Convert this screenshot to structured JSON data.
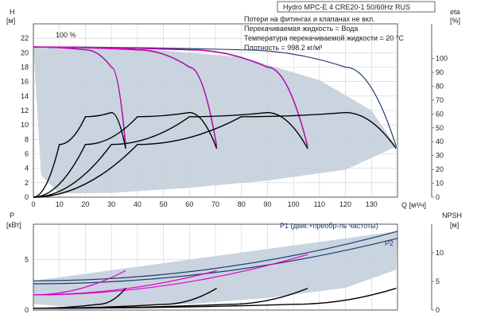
{
  "chart_data": [
    {
      "type": "line",
      "title": "Hydro MPC-E 4 CRE20-1 50/60Hz RUS",
      "xlabel": "Q [м³/ч]",
      "ylabel_left": "H",
      "ylabel_left_unit": "[м]",
      "ylabel_right": "eta",
      "ylabel_right_unit": "[%]",
      "xlim": [
        0,
        140
      ],
      "ylim": [
        0,
        24
      ],
      "ylim_right": [
        0,
        125
      ],
      "x_ticks": [
        0,
        10,
        20,
        30,
        40,
        50,
        60,
        70,
        80,
        90,
        100,
        110,
        120,
        130
      ],
      "y_ticks": [
        0,
        2,
        4,
        6,
        8,
        10,
        12,
        14,
        16,
        18,
        20,
        22
      ],
      "y_ticks_right": [
        0,
        10,
        20,
        30,
        40,
        50,
        60,
        70,
        80,
        90,
        100
      ],
      "grid": true,
      "annotations": [
        "Потери на фитингах и клапанах не вкл.",
        "Перекачиваемая жидкость = Вода",
        "Температура перекачиваемой жидкости = 20 °C",
        "Плотность = 998.2 кг/м³"
      ],
      "speed_label": "100 %",
      "series": [
        {
          "values": [
            [
              0,
              20.8
            ],
            [
              20,
              20.4
            ],
            [
              30,
              18.0
            ],
            [
              35.5,
              7.0
            ]
          ],
          "color": "#000000"
        },
        {
          "values": [
            [
              0,
              20.8
            ],
            [
              40,
              20.4
            ],
            [
              60,
              18.0
            ],
            [
              70.5,
              7.0
            ]
          ],
          "color": "#000000"
        },
        {
          "values": [
            [
              0,
              20.8
            ],
            [
              60,
              20.4
            ],
            [
              90,
              18.0
            ],
            [
              105.5,
              7.0
            ]
          ],
          "color": "#000000"
        },
        {
          "values": [
            [
              0,
              20.8
            ],
            [
              80,
              20.4
            ],
            [
              120,
              18.0
            ],
            [
              139.5,
              7.0
            ]
          ],
          "color": "#1f3d6b"
        },
        {
          "values": [
            [
              0,
              20.8
            ],
            [
              20,
              20.4
            ],
            [
              30,
              18.0
            ],
            [
              35.5,
              7.0
            ]
          ],
          "color": "#e000c8"
        },
        {
          "values": [
            [
              0,
              20.8
            ],
            [
              40,
              20.4
            ],
            [
              60,
              18.0
            ],
            [
              70.5,
              7.0
            ]
          ],
          "color": "#e000c8"
        },
        {
          "values": [
            [
              0,
              20.8
            ],
            [
              60,
              20.4
            ],
            [
              90,
              18.0
            ],
            [
              105.5,
              7.0
            ]
          ],
          "color": "#e000c8"
        },
        {
          "values": [
            [
              0,
              0
            ],
            [
              10,
              38
            ],
            [
              20,
              58
            ],
            [
              30,
              61
            ],
            [
              35.5,
              35
            ]
          ],
          "color": "#000000",
          "axis": "right"
        },
        {
          "values": [
            [
              0,
              0
            ],
            [
              20,
              38
            ],
            [
              40,
              58
            ],
            [
              60,
              61
            ],
            [
              70.5,
              35
            ]
          ],
          "color": "#000000",
          "axis": "right"
        },
        {
          "values": [
            [
              0,
              0
            ],
            [
              30,
              38
            ],
            [
              60,
              58
            ],
            [
              90,
              61
            ],
            [
              105.5,
              35
            ]
          ],
          "color": "#000000",
          "axis": "right"
        },
        {
          "values": [
            [
              0,
              0
            ],
            [
              40,
              38
            ],
            [
              80,
              58
            ],
            [
              120,
              61
            ],
            [
              139.5,
              35
            ]
          ],
          "color": "#000000",
          "axis": "right"
        }
      ]
    },
    {
      "type": "line",
      "ylabel_left": "P",
      "ylabel_left_unit": "[кВт]",
      "ylabel_right": "NPSH",
      "ylabel_right_unit": "[м]",
      "xlim": [
        0,
        140
      ],
      "ylim": [
        0,
        8.5
      ],
      "ylim_right": [
        0,
        15
      ],
      "y_ticks": [
        0,
        5
      ],
      "y_ticks_right": [
        0,
        5,
        10
      ],
      "grid": true,
      "series": [
        {
          "name": "P1 (двиг.+преобр-ль частоты)",
          "values": [
            [
              0,
              2.9
            ],
            [
              140,
              7.8
            ]
          ],
          "color": "#1f3d6b"
        },
        {
          "name": "P2",
          "values": [
            [
              0,
              2.6
            ],
            [
              140,
              7.1
            ]
          ],
          "color": "#1f3d6b"
        },
        {
          "values": [
            [
              0,
              1.5
            ],
            [
              35.5,
              3.9
            ]
          ],
          "color": "#e000c8"
        },
        {
          "values": [
            [
              0,
              1.5
            ],
            [
              70.5,
              3.9
            ]
          ],
          "color": "#e000c8"
        },
        {
          "values": [
            [
              0,
              1.5
            ],
            [
              105.5,
              5.5
            ]
          ],
          "color": "#e000c8"
        },
        {
          "values": [
            [
              0,
              0.3
            ],
            [
              25,
              1.0
            ],
            [
              35.5,
              3.8
            ]
          ],
          "color": "#000000",
          "axis": "right"
        },
        {
          "values": [
            [
              0,
              0.3
            ],
            [
              50,
              1.0
            ],
            [
              70.5,
              3.8
            ]
          ],
          "color": "#000000",
          "axis": "right"
        },
        {
          "values": [
            [
              0,
              0.3
            ],
            [
              75,
              1.0
            ],
            [
              105.5,
              3.8
            ]
          ],
          "color": "#000000",
          "axis": "right"
        },
        {
          "values": [
            [
              0,
              0.3
            ],
            [
              100,
              1.0
            ],
            [
              139.5,
              3.8
            ]
          ],
          "color": "#000000",
          "axis": "right"
        }
      ]
    }
  ]
}
